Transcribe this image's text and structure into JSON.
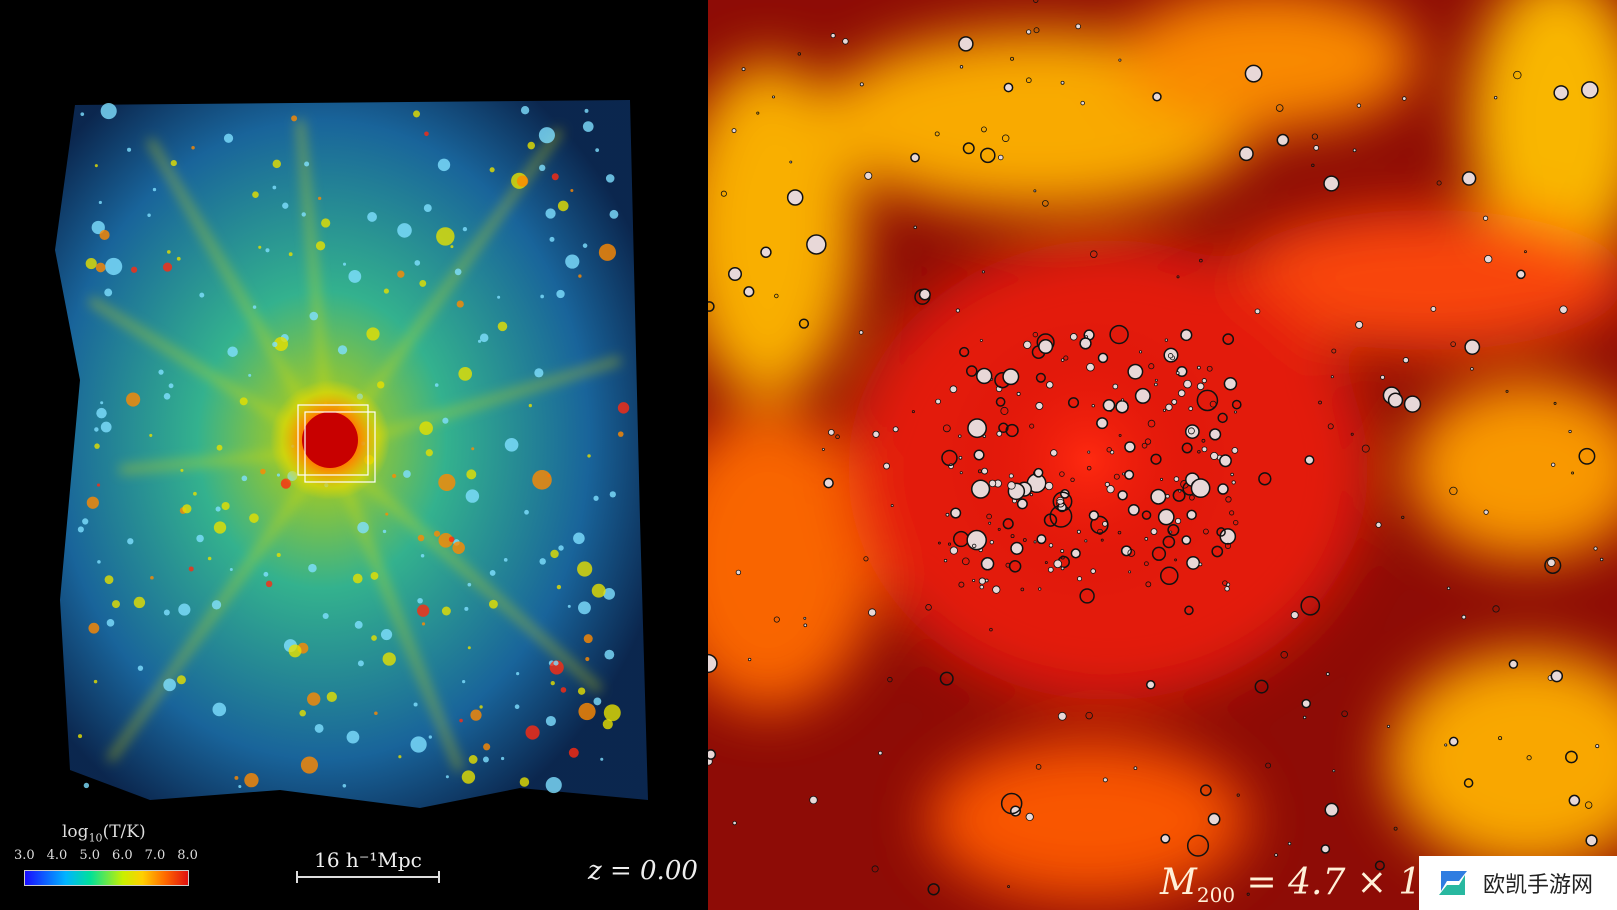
{
  "left_panel": {
    "colorbar_label": "log10(T/K)",
    "colorbar_label_base": "log",
    "colorbar_label_sub": "10",
    "colorbar_label_rest": "(T/K)",
    "colorbar_ticks": [
      "3.0",
      "4.0",
      "5.0",
      "6.0",
      "7.0",
      "8.0"
    ],
    "scale_bar": "16 h⁻¹Mpc",
    "redshift": "z = 0.00",
    "colors": {
      "cold": "#1a0dff",
      "cool": "#00b4ff",
      "warm": "#c8f000",
      "hot": "#e01010"
    }
  },
  "right_panel": {
    "mass_label_prefix": "M",
    "mass_label_sub": "200",
    "mass_label_rest": " = 4.7 × 1",
    "colors": {
      "background": "#8a0b05",
      "filament": "#ffb000"
    }
  },
  "watermark": {
    "text": "欧凯手游网",
    "icon": "logo-icon"
  }
}
